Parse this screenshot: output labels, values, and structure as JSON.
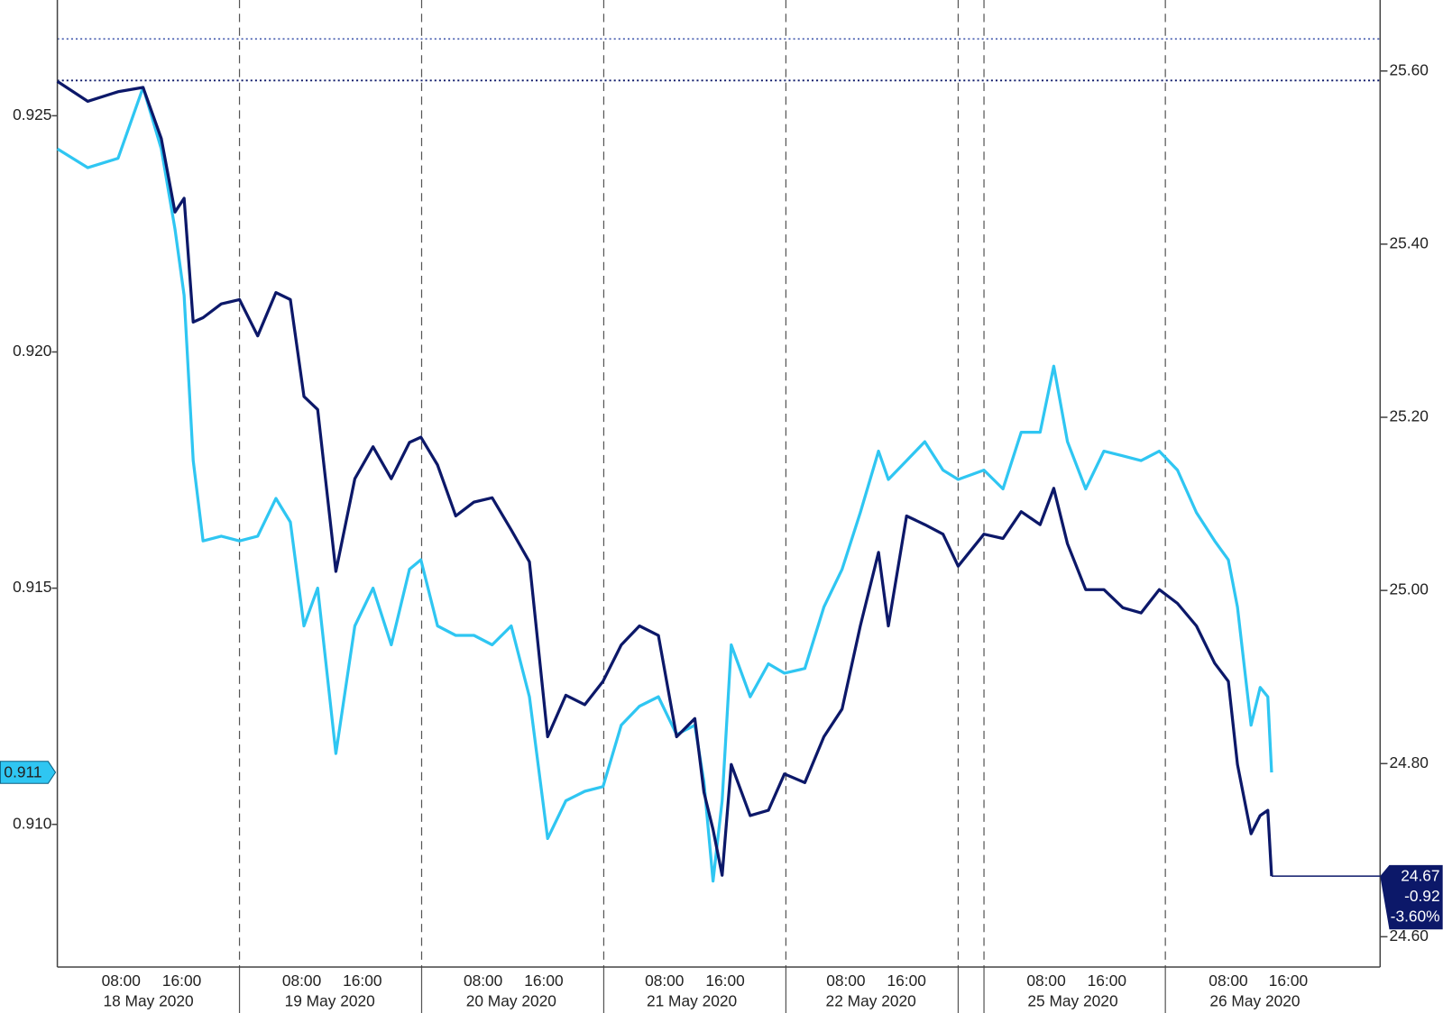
{
  "chart_data": {
    "type": "line",
    "x": [
      0,
      4,
      8,
      11.3,
      13.7,
      15.5,
      16.7,
      17.9,
      19.2,
      21.6,
      24,
      26.4,
      28.8,
      30.7,
      32.5,
      34.3,
      36.7,
      39.2,
      41.6,
      44,
      46.4,
      47.9,
      50.1,
      52.5,
      54.9,
      57.3,
      59.8,
      62.2,
      64.6,
      67,
      69.5,
      71.9,
      74.3,
      76.7,
      79.2,
      81.6,
      84,
      85.2,
      86.4,
      87.6,
      88.8,
      91.3,
      93.7,
      95.8,
      98.5,
      101,
      103.4,
      105.8,
      108.2,
      109.5,
      111.9,
      114.3,
      116.7,
      118.7,
      122.1,
      124.6,
      127,
      129.5,
      131.3,
      133.1,
      135.5,
      137.9,
      140.4,
      142.8,
      145.2,
      147.6,
      150.1,
      152.5,
      154.3,
      155.5,
      157.3,
      158.5,
      159.5,
      160
    ],
    "series": [
      {
        "color": "#2fc6f2",
        "axis": "y",
        "values": [
          0.9243,
          0.9239,
          0.9241,
          0.9256,
          0.9243,
          0.9226,
          0.9212,
          0.9177,
          0.916,
          0.9161,
          0.916,
          0.9161,
          0.9169,
          0.9164,
          0.9142,
          0.915,
          0.9115,
          0.9142,
          0.915,
          0.9138,
          0.9154,
          0.9156,
          0.9142,
          0.914,
          0.914,
          0.9138,
          0.9142,
          0.9127,
          0.9097,
          0.9105,
          0.9107,
          0.9108,
          0.9121,
          0.9125,
          0.9127,
          0.9119,
          0.9121,
          0.9109,
          0.9088,
          0.9105,
          0.9138,
          0.9127,
          0.9134,
          0.9132,
          0.9133,
          0.9146,
          0.9154,
          0.9166,
          0.9179,
          0.9173,
          0.9177,
          0.9181,
          0.9175,
          0.9173,
          0.9175,
          0.9171,
          0.9183,
          0.9183,
          0.9197,
          0.9181,
          0.9171,
          0.9179,
          0.9178,
          0.9177,
          0.9179,
          0.9175,
          0.9166,
          0.916,
          0.9156,
          0.9146,
          0.9121,
          0.9129,
          0.9127,
          0.9111
        ]
      },
      {
        "color": "#0c1869",
        "axis": "y2",
        "values": [
          25.588,
          25.565,
          25.576,
          25.581,
          25.522,
          25.437,
          25.453,
          25.31,
          25.315,
          25.331,
          25.336,
          25.294,
          25.344,
          25.336,
          25.224,
          25.209,
          25.022,
          25.129,
          25.166,
          25.129,
          25.171,
          25.177,
          25.145,
          25.086,
          25.102,
          25.107,
          25.07,
          25.033,
          24.831,
          24.879,
          24.868,
          24.895,
          24.937,
          24.959,
          24.948,
          24.831,
          24.852,
          24.767,
          24.724,
          24.671,
          24.799,
          24.74,
          24.746,
          24.788,
          24.778,
          24.831,
          24.863,
          24.959,
          25.044,
          24.959,
          25.086,
          25.076,
          25.065,
          25.028,
          25.065,
          25.06,
          25.091,
          25.076,
          25.118,
          25.054,
          25.001,
          25.001,
          24.98,
          24.974,
          25.001,
          24.985,
          24.959,
          24.916,
          24.895,
          24.799,
          24.719,
          24.74,
          24.746,
          24.67
        ]
      }
    ],
    "xlim": [
      0,
      174.3
    ],
    "ylim": [
      0.90698,
      0.92745
    ],
    "yticks": [
      0.925,
      {
        "value": 0.92,
        "label": "0.920"
      },
      0.915,
      {
        "value": 0.91,
        "label": "0.910"
      }
    ],
    "y2lim": [
      24.565,
      25.682
    ],
    "y2ticks": [
      {
        "value": 25.6,
        "label": "25.60"
      },
      {
        "value": 25.4,
        "label": "25.40"
      },
      {
        "value": 25.2,
        "label": "25.20"
      },
      {
        "value": 25,
        "label": "25.00"
      },
      {
        "value": 24.8,
        "label": "24.80"
      },
      {
        "value": 24.6,
        "label": "24.60"
      }
    ],
    "xticks": [
      {
        "value": 8.4,
        "label": "08:00"
      },
      {
        "value": 16.4,
        "label": "16:00"
      },
      {
        "value": 32.2,
        "label": "08:00"
      },
      {
        "value": 40.2,
        "label": "16:00"
      },
      {
        "value": 56.1,
        "label": "08:00"
      },
      {
        "value": 64.1,
        "label": "16:00"
      },
      {
        "value": 80,
        "label": "08:00"
      },
      {
        "value": 88,
        "label": "16:00"
      },
      {
        "value": 103.9,
        "label": "08:00"
      },
      {
        "value": 111.9,
        "label": "16:00"
      },
      {
        "value": 130.3,
        "label": "08:00"
      },
      {
        "value": 138.3,
        "label": "16:00"
      },
      {
        "value": 154.3,
        "label": "08:00"
      },
      {
        "value": 162.2,
        "label": "16:00"
      }
    ],
    "day_labels": [
      {
        "value": 12,
        "label": "18 May 2020"
      },
      {
        "value": 35.9,
        "label": "19 May 2020"
      },
      {
        "value": 59.8,
        "label": "20 May 2020"
      },
      {
        "value": 83.6,
        "label": "21 May 2020"
      },
      {
        "value": 107.2,
        "label": "22 May 2020"
      },
      {
        "value": 133.8,
        "label": "25 May 2020"
      },
      {
        "value": 157.8,
        "label": "26 May 2020"
      }
    ],
    "day_separators": [
      24,
      48,
      72,
      96,
      118.7,
      122.1,
      146
    ],
    "high_lines": [
      {
        "value": 25.637,
        "color": "#5b6fb8"
      },
      {
        "value": 25.589,
        "color": "#0c1869"
      }
    ],
    "left_value_label": "0.911",
    "right_value_label": [
      "24.67",
      "-0.92",
      "-3.60%"
    ]
  }
}
